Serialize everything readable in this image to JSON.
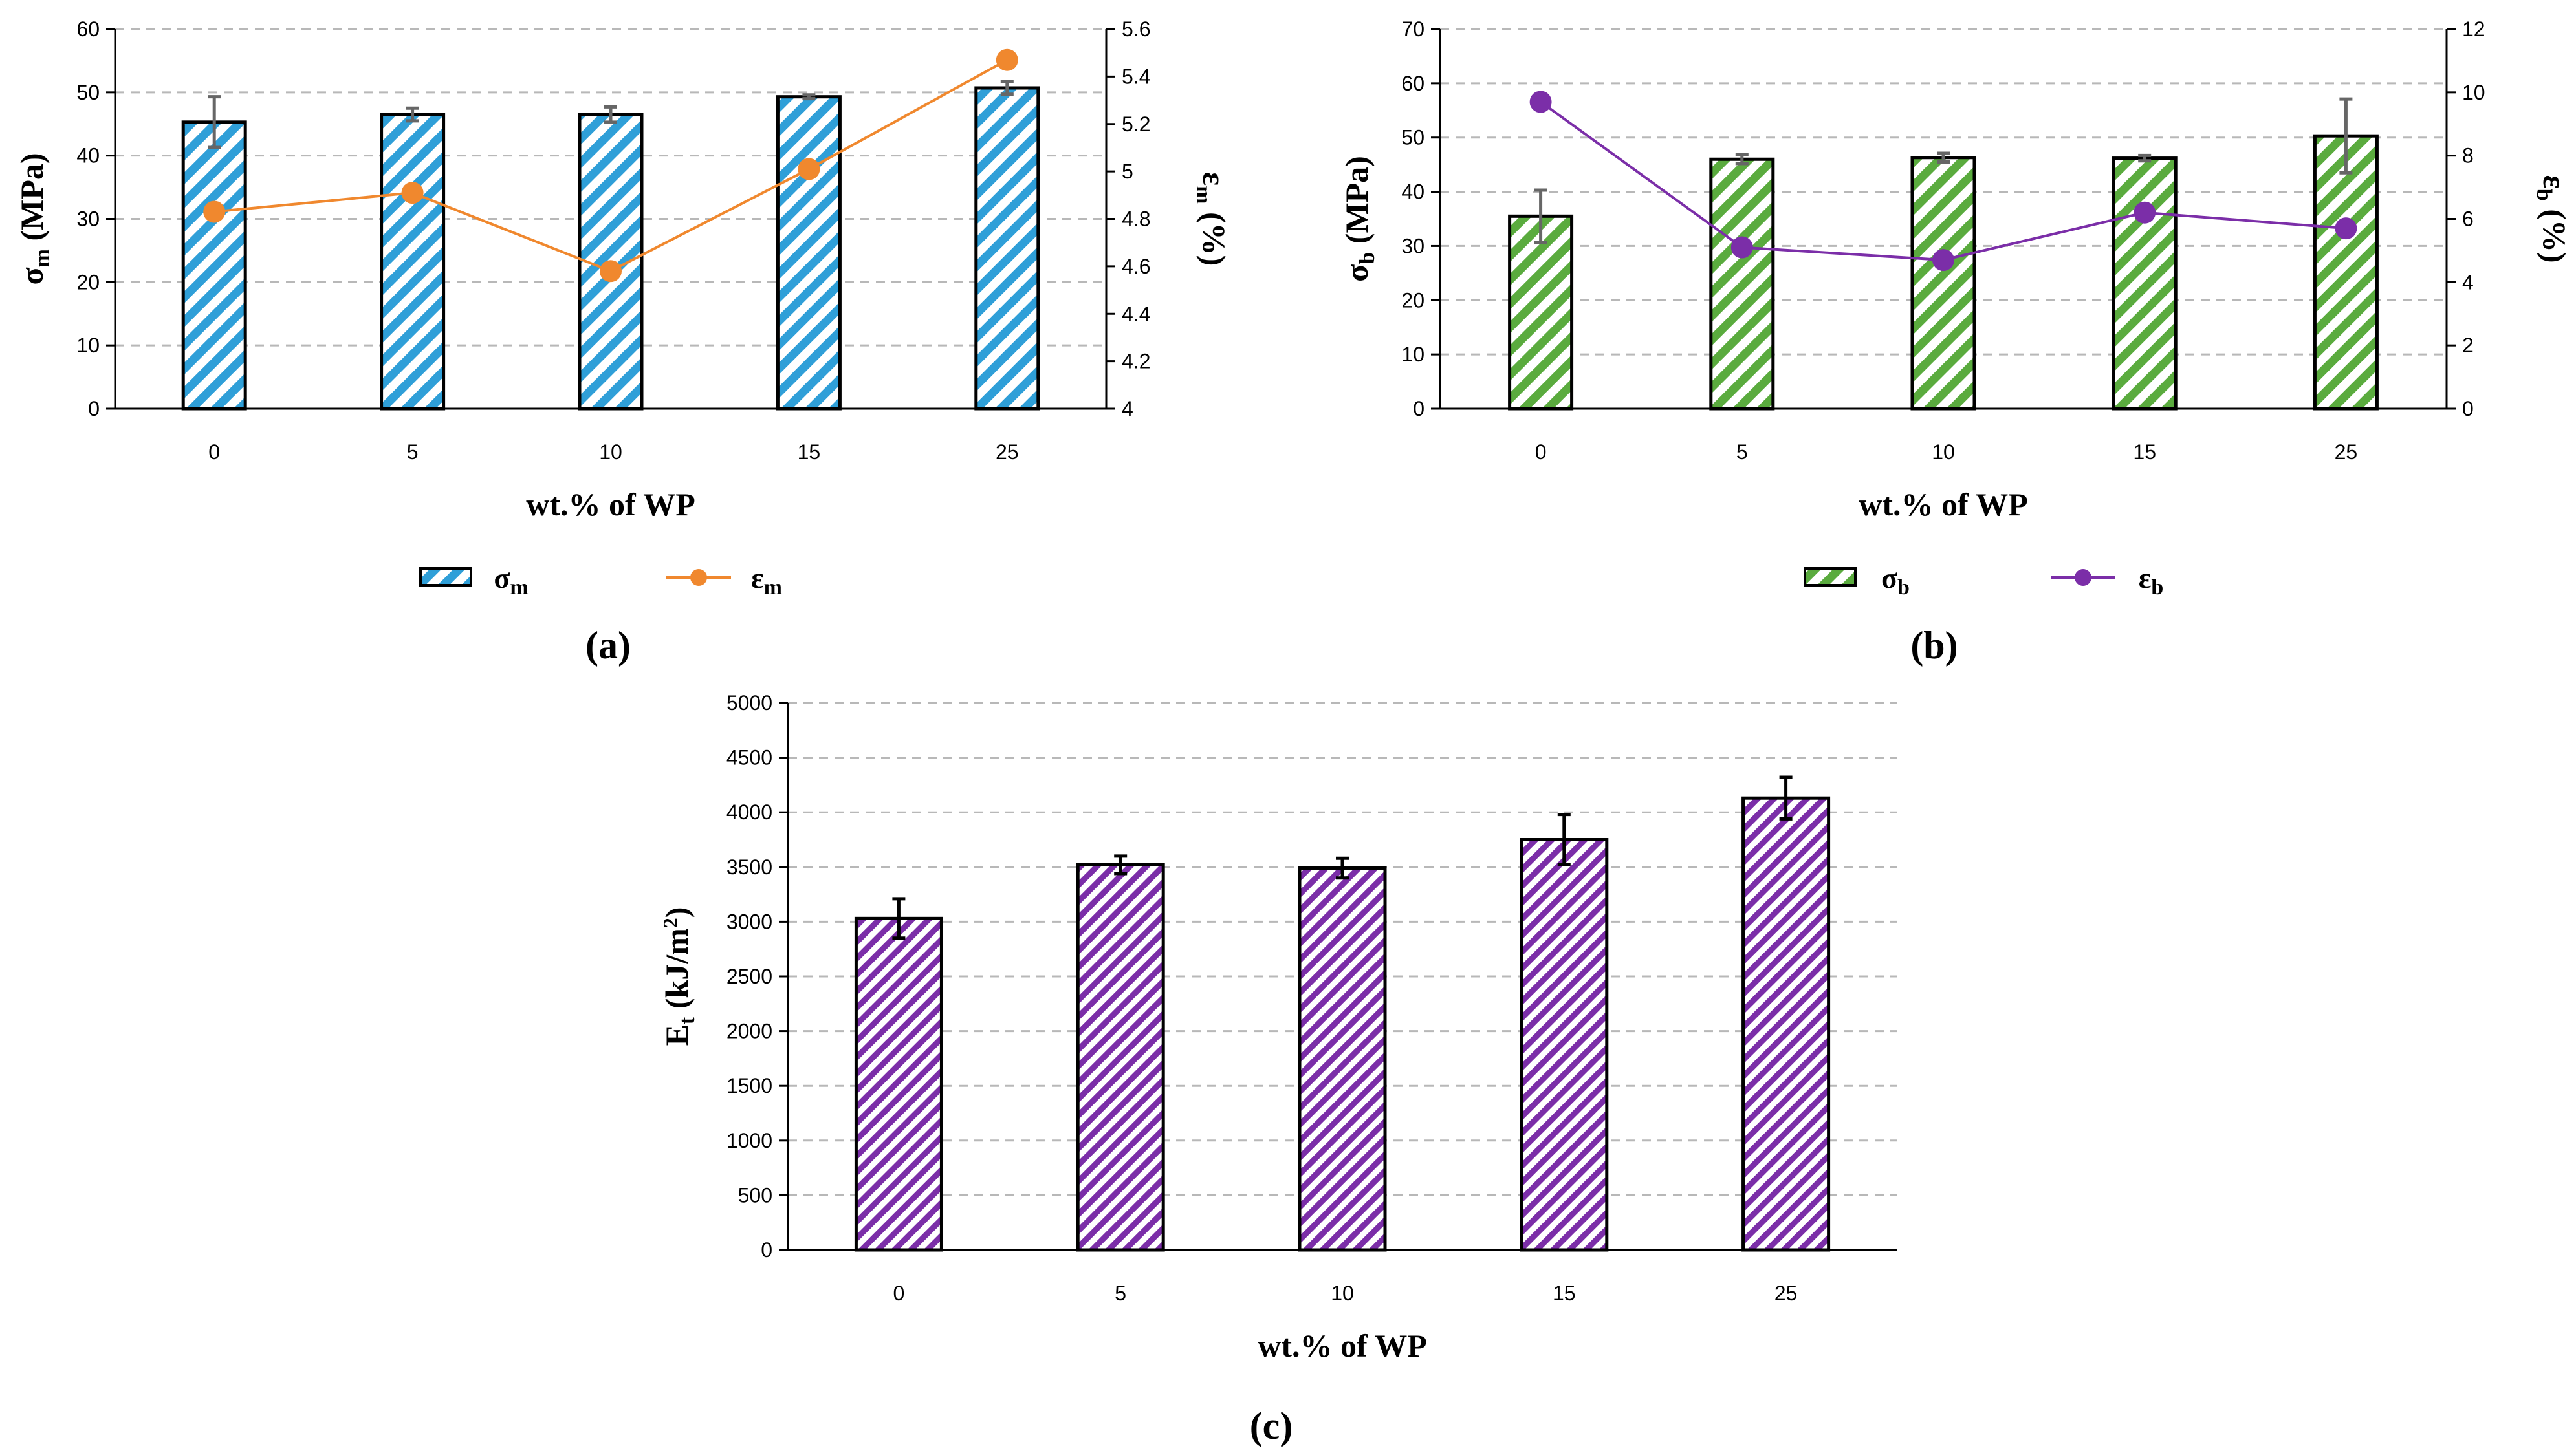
{
  "chart_data": [
    {
      "panel": "(a)",
      "type": "bar+line",
      "xlabel": "wt.% of WP",
      "categories": [
        "0",
        "5",
        "10",
        "15",
        "25"
      ],
      "bar_series": {
        "name": "σm",
        "symbol": "σ",
        "sub": "m",
        "values": [
          45.3,
          46.5,
          46.5,
          49.3,
          50.7
        ],
        "errors": [
          4.0,
          1.0,
          1.2,
          0.3,
          1.0
        ],
        "color": "#2f9fd8",
        "ylim": [
          0,
          60
        ],
        "yticks": [
          0,
          10,
          20,
          30,
          40,
          50,
          60
        ],
        "ylabel": "σm (MPa)",
        "ylabel_sym": "σ",
        "ylabel_sub": "m",
        "ylabel_rest": " (MPa)"
      },
      "line_series": {
        "name": "εm",
        "symbol": "ε",
        "sub": "m",
        "values": [
          4.83,
          4.91,
          4.58,
          5.01,
          5.47
        ],
        "color": "#f0882e",
        "ylim": [
          4,
          5.6
        ],
        "yticks": [
          "4",
          "4.2",
          "4.4",
          "4.6",
          "4.8",
          "5",
          "5.2",
          "5.4",
          "5.6"
        ],
        "ylabel": "εm (%)",
        "ylabel_sym": "ε",
        "ylabel_sub": "m",
        "ylabel_rest": " (%)"
      },
      "grid": true,
      "legend": "bottom"
    },
    {
      "panel": "(b)",
      "type": "bar+line",
      "xlabel": "wt.% of WP",
      "categories": [
        "0",
        "5",
        "10",
        "15",
        "25"
      ],
      "bar_series": {
        "name": "σb",
        "symbol": "σ",
        "sub": "b",
        "values": [
          35.5,
          46.0,
          46.3,
          46.2,
          50.3
        ],
        "errors": [
          4.8,
          0.8,
          0.8,
          0.5,
          6.8
        ],
        "color": "#5aab3e",
        "ylim": [
          0,
          70
        ],
        "yticks": [
          0,
          10,
          20,
          30,
          40,
          50,
          60,
          70
        ],
        "ylabel": "σb (MPa)",
        "ylabel_sym": "σ",
        "ylabel_sub": "b",
        "ylabel_rest": " (MPa)"
      },
      "line_series": {
        "name": "εb",
        "symbol": "ε",
        "sub": "b",
        "values": [
          9.7,
          5.1,
          4.7,
          6.2,
          5.7
        ],
        "color": "#7b2ea8",
        "ylim": [
          0,
          12
        ],
        "yticks": [
          "0",
          "2",
          "4",
          "6",
          "8",
          "10",
          "12"
        ],
        "ylabel": "εb (%)",
        "ylabel_sym": "ε",
        "ylabel_sub": "b",
        "ylabel_rest": " (%)"
      },
      "grid": true,
      "legend": "bottom"
    },
    {
      "panel": "(c)",
      "type": "bar",
      "xlabel": "wt.% of WP",
      "categories": [
        "0",
        "5",
        "10",
        "15",
        "25"
      ],
      "bar_series": {
        "name": "Et",
        "values": [
          3030,
          3520,
          3490,
          3750,
          4130
        ],
        "errors": [
          180,
          80,
          90,
          230,
          190
        ],
        "color": "#7b2ea8",
        "ylim": [
          0,
          5000
        ],
        "yticks": [
          0,
          500,
          1000,
          1500,
          2000,
          2500,
          3000,
          3500,
          4000,
          4500,
          5000
        ],
        "ylabel": "Et (kJ/m2)",
        "ylabel_sym": "E",
        "ylabel_sub": "t",
        "ylabel_rest": " (kJ/m",
        "ylabel_sup": "2",
        "ylabel_end": ")"
      },
      "grid": true
    }
  ]
}
